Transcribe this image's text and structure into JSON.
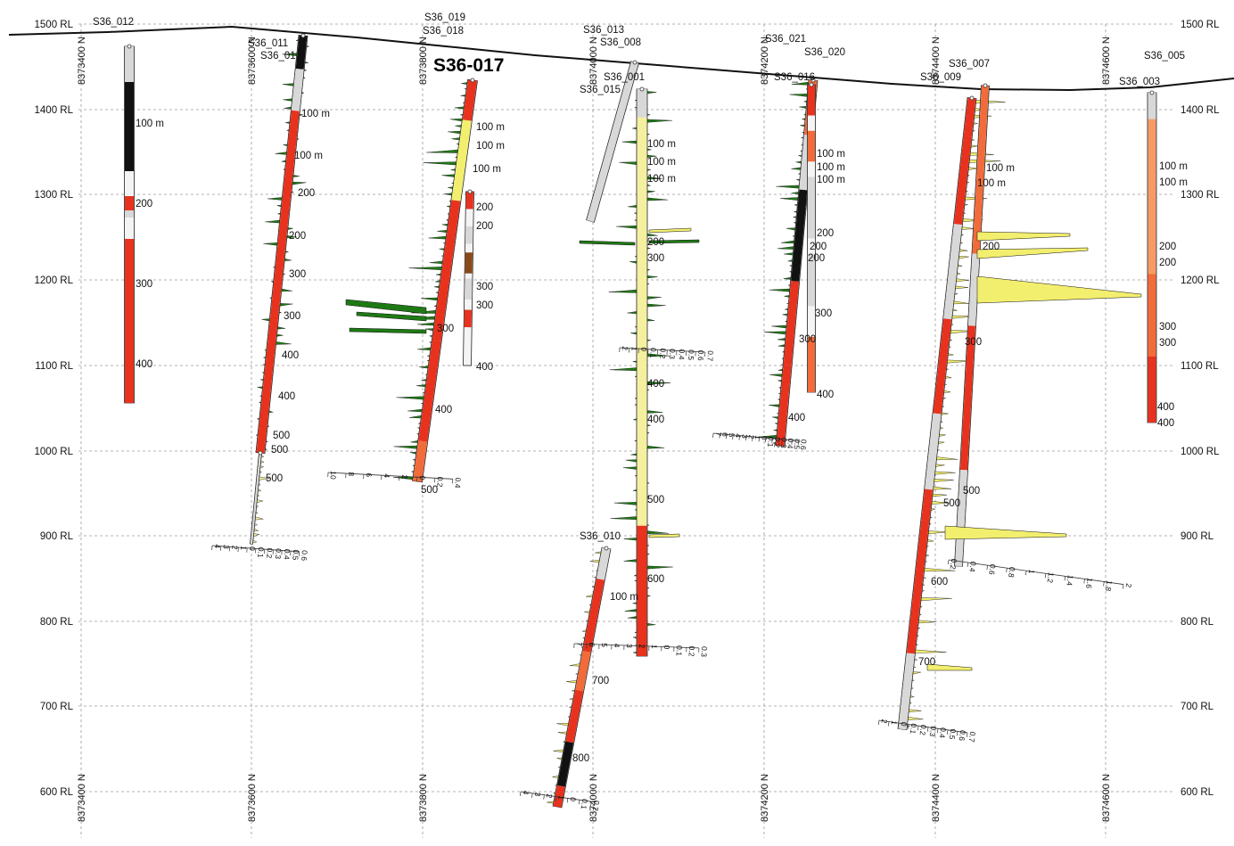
{
  "section": {
    "title": "S36-017",
    "rl_labels": [
      "1500 RL",
      "1400 RL",
      "1300 RL",
      "1200 RL",
      "1100 RL",
      "1000 RL",
      "900 RL",
      "800 RL",
      "700 RL",
      "600 RL"
    ],
    "northing_labels": [
      "8373400 N",
      "8373600 N",
      "8373800 N",
      "8374000 N",
      "8374200 N",
      "8374400 N",
      "8374600 N"
    ],
    "colors": {
      "grid": "#9a9a9a",
      "topography": "#111111",
      "red": "#e8321e",
      "orange": "#f26b3a",
      "salmon": "#f79a66",
      "black": "#111111",
      "yellow": "#f3ef6e",
      "paleyellow": "#f5f0a0",
      "green": "#1e7a14",
      "brown": "#8a4a18",
      "grey": "#d8d8d8"
    }
  },
  "holes": [
    {
      "id": "S36_012",
      "depths": [
        "100 m",
        "200",
        "300",
        "400"
      ]
    },
    {
      "id": "S36_011",
      "depths": [
        "100 m",
        "100 m",
        "200",
        "200",
        "300",
        "300",
        "400",
        "400",
        "500",
        "500",
        "500"
      ]
    },
    {
      "id": "S36_01",
      "depths": []
    },
    {
      "id": "S36_019",
      "depths": []
    },
    {
      "id": "S36_018",
      "depths": [
        "100 m",
        "100 m",
        "100 m",
        "200",
        "200",
        "300",
        "300",
        "300",
        "400",
        "400",
        "500"
      ]
    },
    {
      "id": "S36_013",
      "depths": []
    },
    {
      "id": "S36_008",
      "depths": []
    },
    {
      "id": "S36_001",
      "depths": [
        "100 m",
        "100 m",
        "100 m",
        "200",
        "300",
        "400",
        "400",
        "500",
        "600"
      ]
    },
    {
      "id": "S36_015",
      "depths": []
    },
    {
      "id": "S36_010",
      "depths": [
        "100 m",
        "700",
        "800"
      ]
    },
    {
      "id": "S36_021",
      "depths": []
    },
    {
      "id": "S36_020",
      "depths": [
        "100 m",
        "100 m",
        "100 m",
        "200",
        "200",
        "200",
        "300",
        "300",
        "400",
        "400"
      ]
    },
    {
      "id": "S36_016",
      "depths": []
    },
    {
      "id": "S36_007",
      "depths": [
        "100 m",
        "100 m",
        "200",
        "300",
        "500",
        "500",
        "600",
        "700"
      ]
    },
    {
      "id": "S36_009",
      "depths": []
    },
    {
      "id": "S36_005",
      "depths": []
    },
    {
      "id": "S36_003",
      "depths": [
        "100 m",
        "100 m",
        "200",
        "200",
        "300",
        "300",
        "400",
        "400"
      ]
    }
  ],
  "scales": [
    {
      "ticks": [
        "4",
        "3",
        "2",
        "1",
        "0",
        "0.1",
        "0.2",
        "0.3",
        "0.4",
        "0.5",
        "0.6"
      ]
    },
    {
      "ticks": [
        "10",
        "8",
        "6",
        "4",
        "2",
        "0",
        "0.2",
        "0.4"
      ]
    },
    {
      "ticks": [
        "2",
        "1",
        "0",
        "0.1",
        "0.2",
        "0.3",
        "0.4",
        "0.5",
        "0.6",
        "0.7"
      ]
    },
    {
      "ticks": [
        "7",
        "6",
        "5",
        "4",
        "3",
        "2",
        "1",
        "0",
        "0.1",
        "0.2",
        "0.3",
        "0.4",
        "0.5",
        "0.6"
      ]
    },
    {
      "ticks": [
        "4",
        "3",
        "2",
        "1",
        "0",
        "0.1",
        "0.2"
      ]
    },
    {
      "ticks": [
        "7",
        "6",
        "5",
        "4",
        "3",
        "2",
        "1",
        "0",
        "0.1",
        "0.2",
        "0.3"
      ]
    },
    {
      "ticks": [
        "0.2",
        "0.4",
        "0.6",
        "0.8",
        "1",
        "1.2",
        "1.4",
        "1.6",
        "1.8",
        "2"
      ]
    },
    {
      "ticks": [
        "2",
        "1",
        "0",
        "0.1",
        "0.2",
        "0.3",
        "0.4",
        "0.5",
        "0.6",
        "0.7"
      ]
    }
  ]
}
